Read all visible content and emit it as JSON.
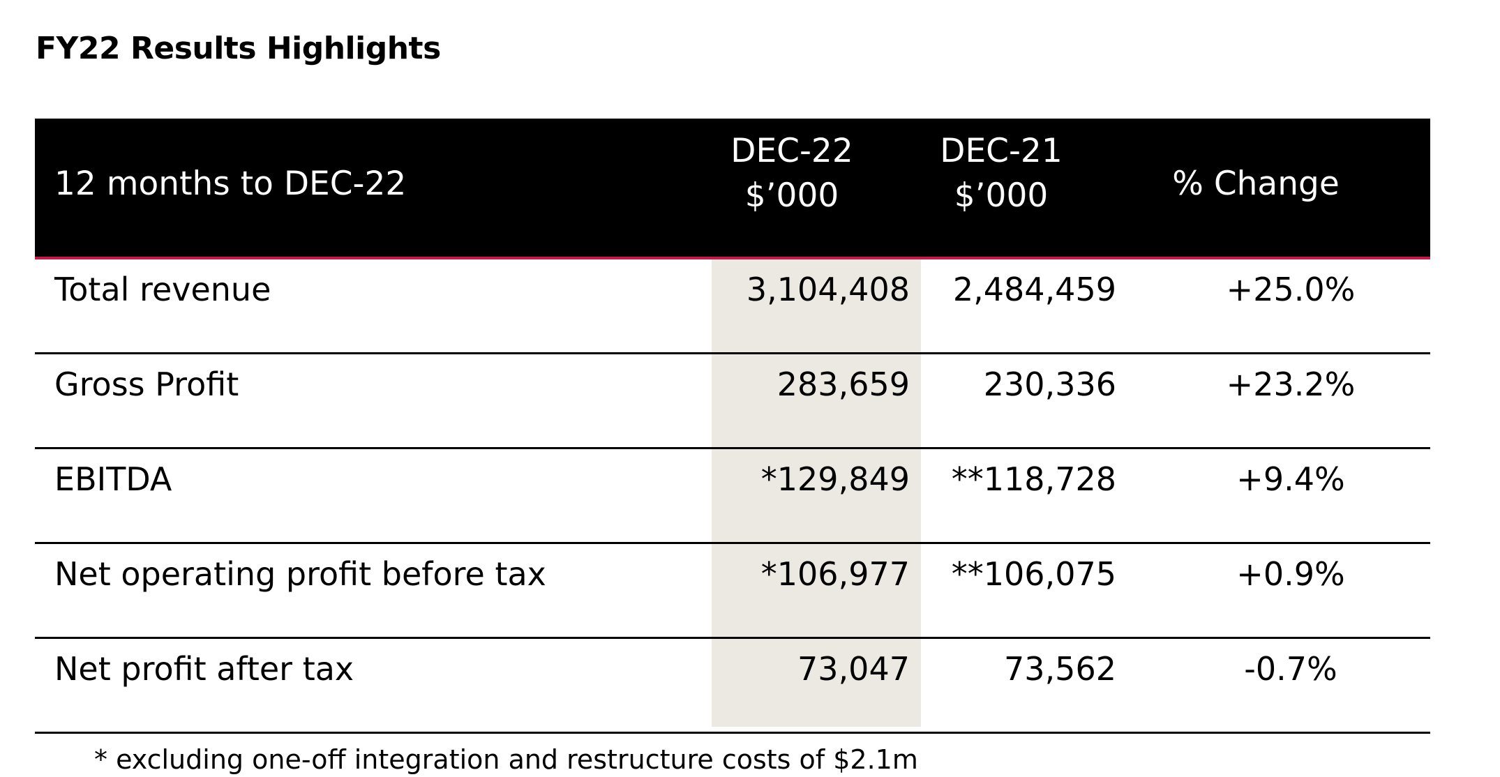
{
  "title": "FY22 Results Highlights",
  "table": {
    "header": {
      "label": "12 months to DEC-22",
      "dec22_line1": "DEC-22",
      "dec22_line2": "$’000",
      "dec21_line1": "DEC-21",
      "dec21_line2": "$’000",
      "change": "% Change"
    },
    "rows": [
      {
        "label": "Total revenue",
        "dec22": "3,104,408",
        "dec21": "2,484,459",
        "change": "+25.0%"
      },
      {
        "label": "Gross Profit",
        "dec22": "283,659",
        "dec21": "230,336",
        "change": "+23.2%"
      },
      {
        "label": "EBITDA",
        "dec22": "*129,849",
        "dec21": "**118,728",
        "change": "+9.4%"
      },
      {
        "label": "Net operating profit before tax",
        "dec22": "*106,977",
        "dec21": "**106,075",
        "change": "+0.9%"
      },
      {
        "label": "Net profit after tax",
        "dec22": "73,047",
        "dec21": "73,562",
        "change": "-0.7%"
      }
    ]
  },
  "footnote": "* excluding one-off integration and restructure costs of $2.1m",
  "colors": {
    "header_bg": "#000000",
    "header_accent": "#c8184a",
    "highlight_col": "#ece9e2"
  }
}
